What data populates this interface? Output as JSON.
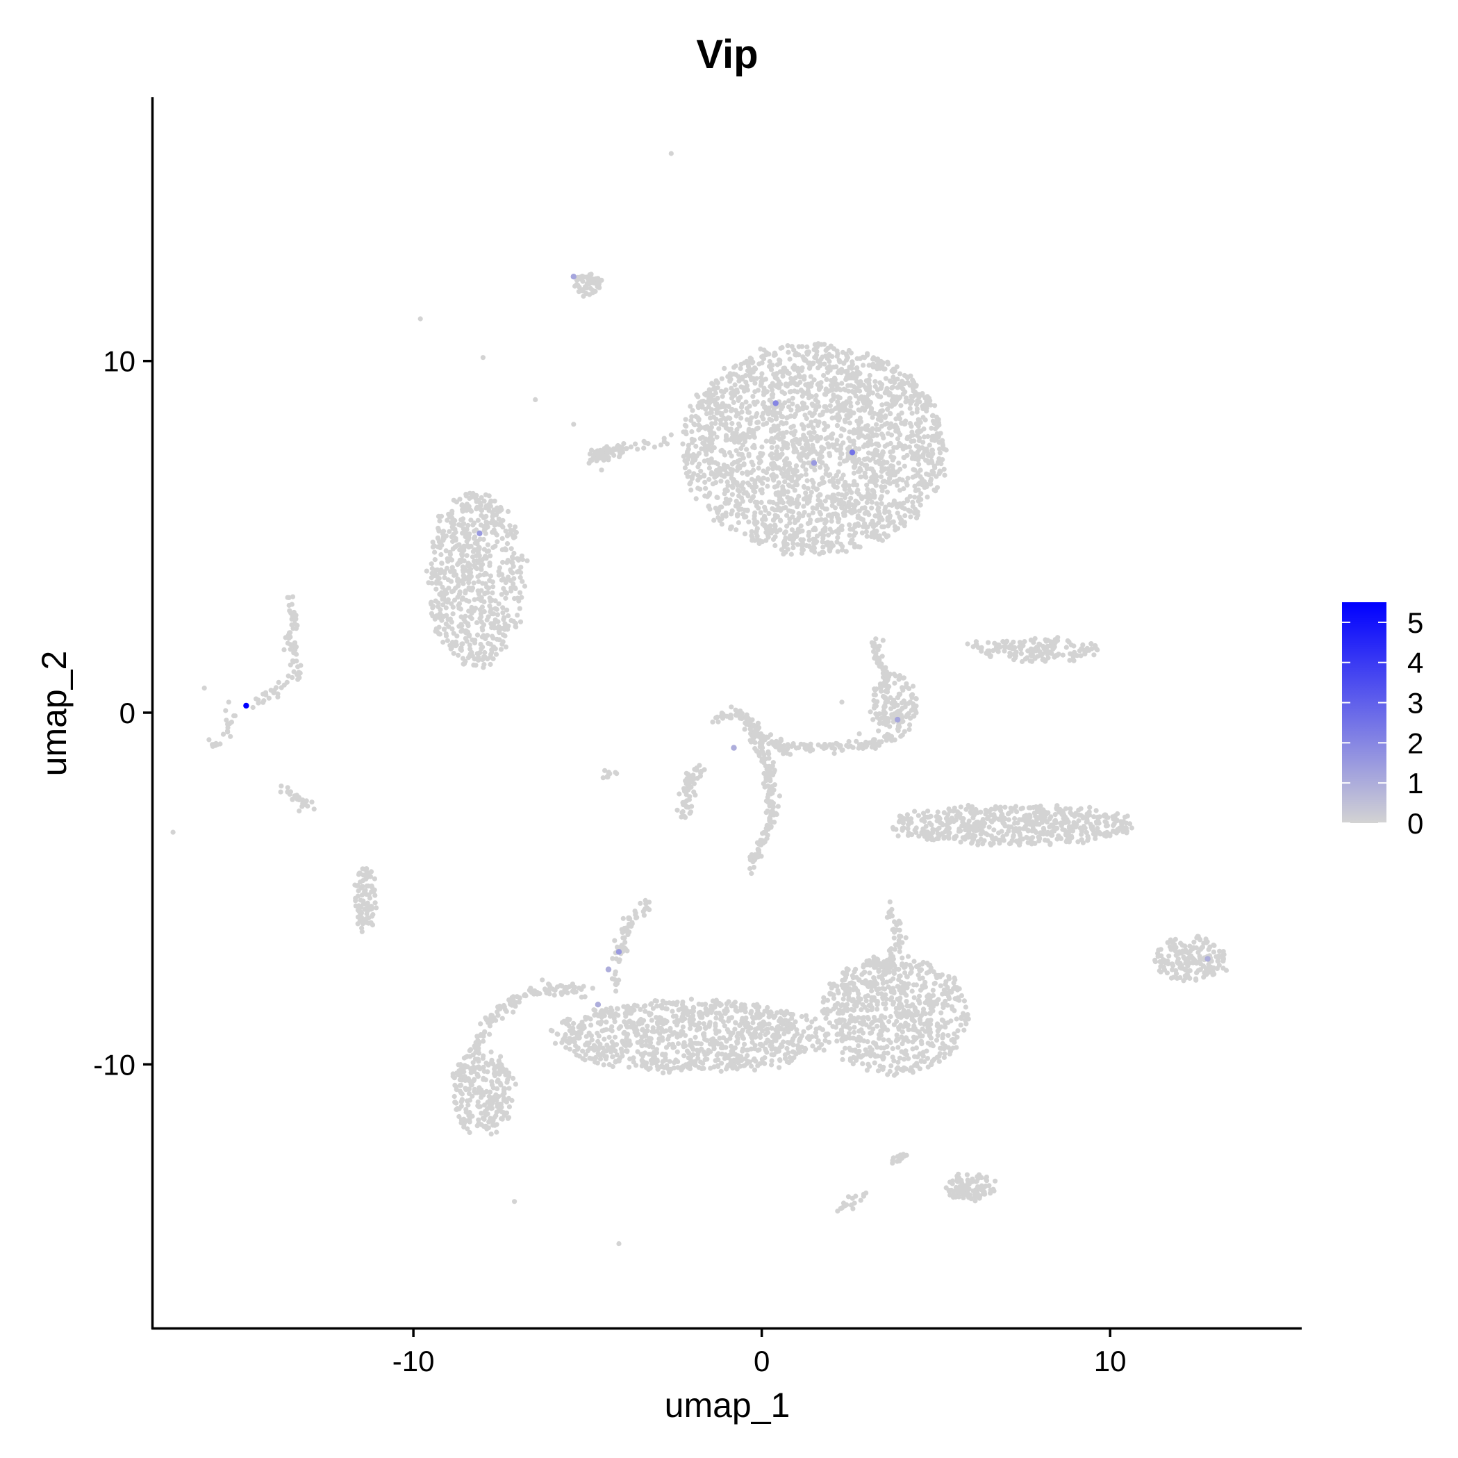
{
  "chart_data": {
    "type": "scatter",
    "title": "Vip",
    "xlabel": "umap_1",
    "ylabel": "umap_2",
    "xlim": [
      -17.5,
      15.5
    ],
    "ylim": [
      -17.5,
      17.5
    ],
    "x_ticks": [
      -10,
      0,
      10
    ],
    "y_ticks": [
      -10,
      0,
      10
    ],
    "x_tick_labels": [
      "-10",
      "0",
      "10"
    ],
    "y_tick_labels": [
      "-10",
      "0",
      "10"
    ],
    "grid": false,
    "legend": {
      "placement": "right",
      "type": "colorbar",
      "min": 0,
      "max": 5.5,
      "ticks": [
        0,
        1,
        2,
        3,
        4,
        5
      ],
      "tick_labels": [
        "0",
        "1",
        "2",
        "3",
        "4",
        "5"
      ],
      "low_color": "#d3d3d3",
      "high_color": "#0000ff"
    },
    "base_color": "#d3d3d3",
    "clusters": [
      {
        "name": "big-top",
        "cx": 1.5,
        "cy": 7.5,
        "rx": 3.8,
        "ry": 3.0,
        "n": 2200
      },
      {
        "name": "left-oval",
        "cx": -8.2,
        "cy": 3.8,
        "rx": 1.4,
        "ry": 2.5,
        "n": 650
      },
      {
        "name": "bottom-curve-main",
        "cx": -2.0,
        "cy": -9.2,
        "rx": 4.0,
        "ry": 1.0,
        "n": 900
      },
      {
        "name": "bottom-right-blob",
        "cx": 3.8,
        "cy": -8.6,
        "rx": 2.1,
        "ry": 1.7,
        "n": 700
      },
      {
        "name": "bottom-left-hook",
        "cx": -8.0,
        "cy": -10.8,
        "rx": 0.9,
        "ry": 1.2,
        "n": 250
      },
      {
        "name": "right-streak",
        "cx": 7.2,
        "cy": -3.2,
        "rx": 3.5,
        "ry": 0.55,
        "n": 550
      },
      {
        "name": "upper-right-streak",
        "cx": 7.8,
        "cy": 1.8,
        "rx": 1.9,
        "ry": 0.3,
        "n": 150
      },
      {
        "name": "far-right-blob",
        "cx": 12.3,
        "cy": -7.0,
        "rx": 1.1,
        "ry": 0.6,
        "n": 170
      },
      {
        "name": "mid-right-blob",
        "cx": 3.8,
        "cy": 0.2,
        "rx": 0.7,
        "ry": 0.9,
        "n": 140
      },
      {
        "name": "bottom-small-blob",
        "cx": 6.0,
        "cy": -13.5,
        "rx": 0.7,
        "ry": 0.35,
        "n": 100
      },
      {
        "name": "left-thin-cluster",
        "cx": -11.4,
        "cy": -5.3,
        "rx": 0.3,
        "ry": 0.9,
        "n": 90
      },
      {
        "name": "top-small-cluster",
        "cx": -5.0,
        "cy": 12.2,
        "rx": 0.4,
        "ry": 0.3,
        "n": 60
      },
      {
        "name": "mid-left-small",
        "cx": -4.5,
        "cy": 7.4,
        "rx": 0.55,
        "ry": 0.2,
        "n": 45
      }
    ],
    "strands": [
      {
        "name": "mid-stem",
        "points": [
          [
            -0.3,
            -0.5
          ],
          [
            0.2,
            -1.5
          ],
          [
            0.3,
            -3.0
          ],
          [
            -0.3,
            -4.4
          ]
        ],
        "n": 160
      },
      {
        "name": "mid-arc",
        "points": [
          [
            -1.3,
            -0.2
          ],
          [
            -0.6,
            0.0
          ],
          [
            0.0,
            -0.6
          ],
          [
            0.6,
            -1.0
          ]
        ],
        "n": 90
      },
      {
        "name": "mid-arm-right",
        "points": [
          [
            0.5,
            -1.0
          ],
          [
            1.8,
            -1.0
          ],
          [
            3.2,
            -0.9
          ],
          [
            3.8,
            -0.6
          ]
        ],
        "n": 90
      },
      {
        "name": "mid-arm-left",
        "points": [
          [
            -1.8,
            -1.6
          ],
          [
            -2.1,
            -1.9
          ],
          [
            -2.2,
            -3.0
          ]
        ],
        "n": 60
      },
      {
        "name": "right-spike",
        "points": [
          [
            3.2,
            2.0
          ],
          [
            3.5,
            1.1
          ],
          [
            3.6,
            0.6
          ]
        ],
        "n": 40
      },
      {
        "name": "upper-mid-streak",
        "points": [
          [
            -5.0,
            7.1
          ],
          [
            -4.2,
            7.5
          ],
          [
            -2.6,
            7.8
          ]
        ],
        "n": 40
      },
      {
        "name": "curve-upper-arm",
        "points": [
          [
            -4.3,
            -7.8
          ],
          [
            -3.9,
            -6.0
          ],
          [
            -3.2,
            -5.4
          ]
        ],
        "n": 70
      },
      {
        "name": "right-blob-arm",
        "points": [
          [
            3.5,
            -7.5
          ],
          [
            4.0,
            -6.5
          ],
          [
            3.6,
            -5.5
          ]
        ],
        "n": 50
      },
      {
        "name": "curve-left-loop",
        "points": [
          [
            -5.0,
            -7.9
          ],
          [
            -6.5,
            -7.9
          ],
          [
            -7.8,
            -8.7
          ],
          [
            -8.4,
            -9.8
          ]
        ],
        "n": 130
      },
      {
        "name": "far-left-branch-up",
        "points": [
          [
            -13.3,
            1.0
          ],
          [
            -13.5,
            2.0
          ],
          [
            -13.5,
            3.2
          ]
        ],
        "n": 50
      },
      {
        "name": "far-left-branch-mid",
        "points": [
          [
            -14.5,
            0.3
          ],
          [
            -13.8,
            0.8
          ],
          [
            -13.2,
            1.1
          ]
        ],
        "n": 30
      },
      {
        "name": "far-left-branch-down",
        "points": [
          [
            -15.2,
            0.0
          ],
          [
            -15.5,
            -0.6
          ],
          [
            -15.8,
            -1.0
          ]
        ],
        "n": 20
      },
      {
        "name": "far-left-diag",
        "points": [
          [
            -13.8,
            -2.0
          ],
          [
            -13.3,
            -2.5
          ],
          [
            -12.9,
            -2.7
          ]
        ],
        "n": 25
      },
      {
        "name": "bottom-diag",
        "points": [
          [
            2.1,
            -14.2
          ],
          [
            2.6,
            -13.9
          ],
          [
            3.2,
            -13.6
          ]
        ],
        "n": 18
      },
      {
        "name": "bottom-diag-2",
        "points": [
          [
            3.6,
            -12.9
          ],
          [
            3.9,
            -12.7
          ],
          [
            4.2,
            -12.6
          ]
        ],
        "n": 12
      },
      {
        "name": "mid-left-small-diag",
        "points": [
          [
            -4.5,
            -1.9
          ],
          [
            -4.3,
            -1.6
          ]
        ],
        "n": 8
      }
    ],
    "singletons": [
      [
        -2.6,
        15.9
      ],
      [
        -9.8,
        11.2
      ],
      [
        -8.0,
        10.1
      ],
      [
        -6.5,
        8.9
      ],
      [
        -5.4,
        8.2
      ],
      [
        -4.6,
        6.9
      ],
      [
        -2.8,
        7.8
      ],
      [
        -2.6,
        7.9
      ],
      [
        -2.1,
        7.6
      ],
      [
        -16.0,
        0.7
      ],
      [
        -15.3,
        0.3
      ],
      [
        -16.9,
        -3.4
      ],
      [
        -7.1,
        -13.9
      ],
      [
        -4.1,
        -15.1
      ],
      [
        -4.2,
        -1.7
      ],
      [
        2.3,
        0.3
      ],
      [
        2.8,
        -0.6
      ],
      [
        -6.3,
        -7.6
      ]
    ],
    "highlighted_points": [
      {
        "x": -14.8,
        "y": 0.2,
        "value": 5.5
      },
      {
        "x": 0.4,
        "y": 8.8,
        "value": 2.0
      },
      {
        "x": 2.6,
        "y": 7.4,
        "value": 2.5
      },
      {
        "x": 1.5,
        "y": 7.1,
        "value": 1.5
      },
      {
        "x": -8.1,
        "y": 5.1,
        "value": 1.5
      },
      {
        "x": 3.9,
        "y": -0.2,
        "value": 1.2
      },
      {
        "x": -4.1,
        "y": -6.8,
        "value": 1.5
      },
      {
        "x": -4.4,
        "y": -7.3,
        "value": 1.0
      },
      {
        "x": -4.7,
        "y": -8.3,
        "value": 1.0
      },
      {
        "x": 12.8,
        "y": -7.0,
        "value": 1.0
      },
      {
        "x": -0.8,
        "y": -1.0,
        "value": 1.0
      },
      {
        "x": -5.4,
        "y": 12.4,
        "value": 1.2
      }
    ]
  }
}
